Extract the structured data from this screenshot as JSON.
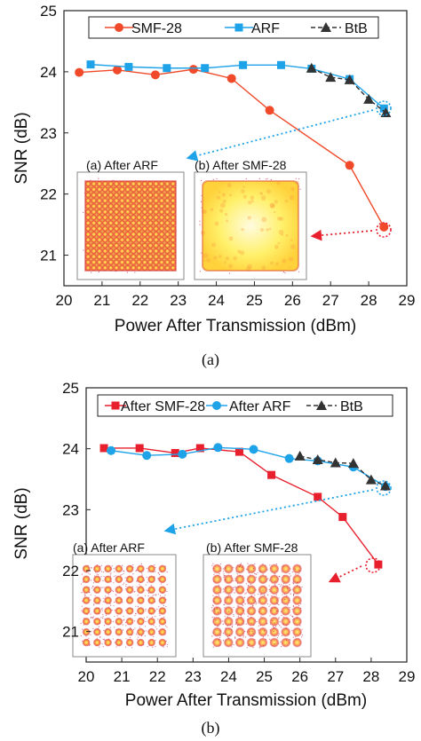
{
  "chart_data": [
    {
      "type": "line",
      "xlabel": "Power After Transmission (dBm)",
      "ylabel": "SNR (dB)",
      "xlim": [
        20,
        29
      ],
      "ylim": [
        20.5,
        25
      ],
      "xticks": [
        "20",
        "21",
        "22",
        "23",
        "24",
        "25",
        "26",
        "27",
        "28",
        "29"
      ],
      "yticks": [
        "21",
        "22",
        "23",
        "24",
        "25"
      ],
      "caption": "(a)",
      "series": [
        {
          "name": "SMF-28",
          "color": "#f04a2a",
          "marker": "circle",
          "x": [
            20.4,
            21.4,
            22.4,
            23.4,
            24.4,
            25.4,
            27.5,
            28.4
          ],
          "y": [
            23.99,
            24.03,
            23.95,
            24.04,
            23.89,
            23.37,
            22.47,
            21.46
          ]
        },
        {
          "name": "ARF",
          "color": "#1fa3e8",
          "marker": "square",
          "x": [
            20.7,
            21.7,
            22.7,
            23.7,
            24.7,
            25.7,
            26.5,
            27.5,
            28.4
          ],
          "y": [
            24.12,
            24.08,
            24.06,
            24.06,
            24.11,
            24.11,
            24.05,
            23.88,
            23.4
          ]
        },
        {
          "name": "BtB",
          "color": "#333333",
          "marker": "triangle",
          "dash": true,
          "x": [
            26.5,
            27.0,
            27.5,
            28.0,
            28.45
          ],
          "y": [
            24.06,
            23.91,
            23.87,
            23.55,
            23.33
          ]
        }
      ],
      "insets": [
        {
          "label": "(a) After ARF",
          "pattern": "dense"
        },
        {
          "label": "(b) After SMF-28",
          "pattern": "dense-blur"
        }
      ]
    },
    {
      "type": "line",
      "xlabel": "Power After Transmission (dBm)",
      "ylabel": "SNR (dB)",
      "xlim": [
        20,
        29
      ],
      "ylim": [
        20.5,
        25
      ],
      "xticks": [
        "20",
        "21",
        "22",
        "23",
        "24",
        "25",
        "26",
        "27",
        "28",
        "29"
      ],
      "yticks": [
        "21",
        "22",
        "23",
        "24",
        "25"
      ],
      "caption": "(b)",
      "series": [
        {
          "name": "After SMF-28",
          "color": "#e8202e",
          "marker": "square",
          "x": [
            20.5,
            21.5,
            22.5,
            23.2,
            24.3,
            25.2,
            26.5,
            27.2,
            28.2
          ],
          "y": [
            24.01,
            24.01,
            23.93,
            24.01,
            23.95,
            23.57,
            23.21,
            22.88,
            22.1
          ]
        },
        {
          "name": "After ARF",
          "color": "#1fa3e8",
          "marker": "circle",
          "x": [
            20.7,
            21.7,
            22.7,
            23.7,
            24.7,
            25.7,
            26.5,
            27.5,
            28.4
          ],
          "y": [
            23.97,
            23.89,
            23.91,
            24.02,
            23.99,
            23.84,
            23.8,
            23.7,
            23.38
          ]
        },
        {
          "name": "BtB",
          "color": "#333333",
          "marker": "triangle",
          "dash": true,
          "x": [
            26.0,
            26.5,
            27.0,
            27.5,
            28.0,
            28.4
          ],
          "y": [
            23.88,
            23.82,
            23.77,
            23.76,
            23.49,
            23.39
          ]
        }
      ],
      "insets": [
        {
          "label": "(a) After ARF",
          "pattern": "grid"
        },
        {
          "label": "(b) After SMF-28",
          "pattern": "grid-blur"
        }
      ]
    }
  ]
}
